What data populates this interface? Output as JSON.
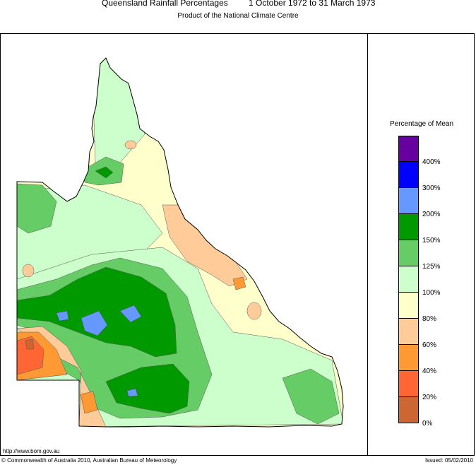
{
  "header": {
    "title": "Queensland Rainfall Percentages",
    "period": "1 October 1972 to 31 March 1973",
    "subtitle": "Product of the National Climate Centre"
  },
  "legend": {
    "title": "Percentage of Mean",
    "bins": [
      {
        "color": "#6600a0"
      },
      {
        "color": "#0000ff"
      },
      {
        "color": "#6699ff"
      },
      {
        "color": "#009900"
      },
      {
        "color": "#66cc66"
      },
      {
        "color": "#ccffcc"
      },
      {
        "color": "#ffffcc"
      },
      {
        "color": "#ffcc99"
      },
      {
        "color": "#ff9933"
      },
      {
        "color": "#ff6633"
      },
      {
        "color": "#cc6633"
      }
    ],
    "labels": [
      "400%",
      "300%",
      "200%",
      "150%",
      "125%",
      "100%",
      "80%",
      "60%",
      "40%",
      "20%",
      "0%"
    ]
  },
  "footer": {
    "url": "http://www.bom.gov.au",
    "copyright": "© Commonwealth of Australia 2010, Australian Bureau of Meteorology",
    "issued": "Issued: 05/02/2010"
  }
}
